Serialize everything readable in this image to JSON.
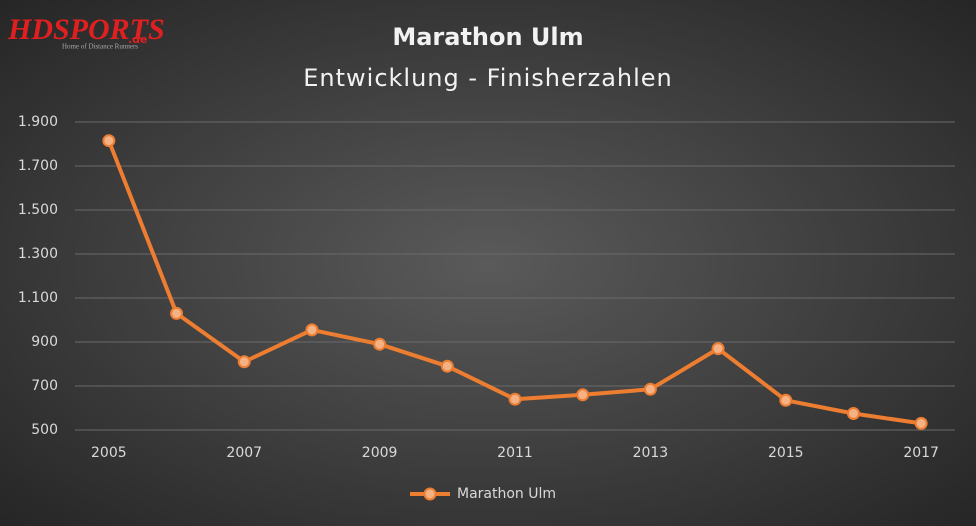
{
  "logo": {
    "brand": "HDSPORTS",
    "domain": ".de",
    "tagline": "Home of Distance Runners"
  },
  "chart_data": {
    "type": "line",
    "title": "Marathon Ulm",
    "subtitle": "Entwicklung - Finisherzahlen",
    "categories": [
      "2005",
      null,
      "2007",
      null,
      "2009",
      null,
      "2011",
      null,
      "2013",
      null,
      "2015",
      null,
      "2017"
    ],
    "series": [
      {
        "name": "Marathon Ulm",
        "color": "#ed7d31",
        "values": [
          1815,
          1030,
          810,
          955,
          890,
          790,
          640,
          660,
          685,
          870,
          635,
          575,
          530
        ]
      }
    ],
    "ylim": [
      500,
      1900
    ],
    "yticks": [
      500,
      700,
      900,
      {
        "value": 1100,
        "label": "1.100"
      },
      {
        "value": 1300,
        "label": "1.300"
      },
      {
        "value": 1500,
        "label": "1.500"
      },
      {
        "value": 1700,
        "label": "1.700"
      },
      {
        "value": 1900,
        "label": "1.900"
      }
    ],
    "grid": true,
    "legend": "bottom"
  }
}
